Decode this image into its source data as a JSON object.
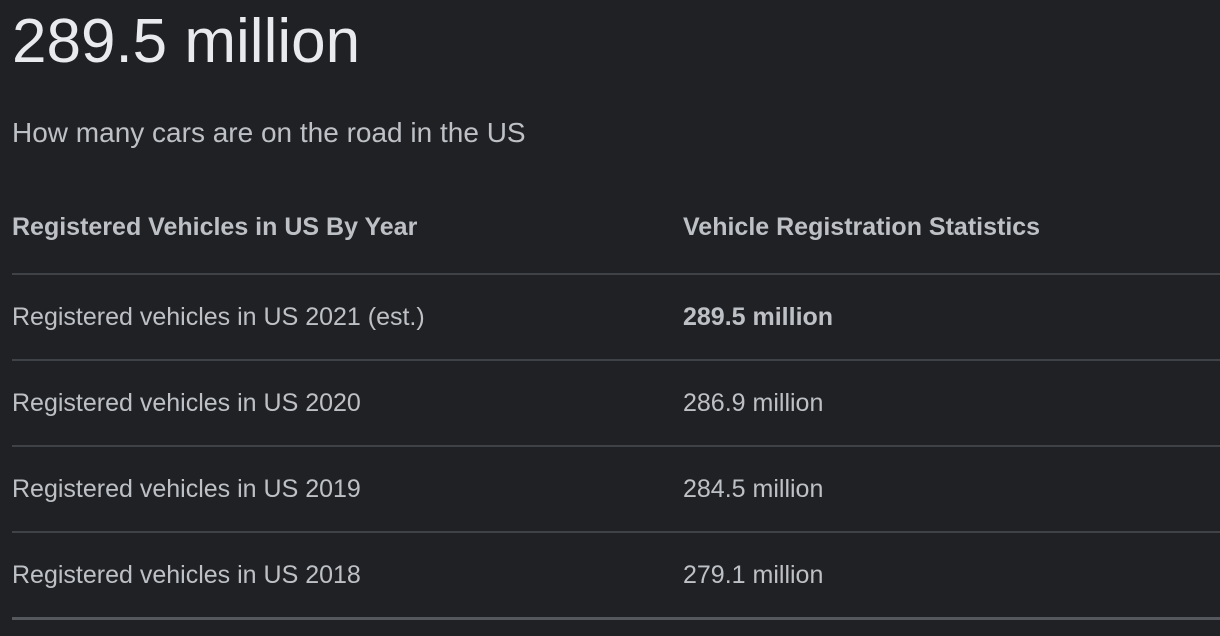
{
  "answer": {
    "value": "289.5 million",
    "question": "How many cars are on the road in the US"
  },
  "table": {
    "headers": [
      "Registered Vehicles in US By Year",
      "Vehicle Registration Statistics"
    ],
    "rows": [
      {
        "label": "Registered vehicles in US 2021 (est.)",
        "value": "289.5 million",
        "bold": true
      },
      {
        "label": "Registered vehicles in US 2020",
        "value": "286.9 million",
        "bold": false
      },
      {
        "label": "Registered vehicles in US 2019",
        "value": "284.5 million",
        "bold": false
      },
      {
        "label": "Registered vehicles in US 2018",
        "value": "279.1 million",
        "bold": false
      }
    ]
  },
  "colors": {
    "background": "#202124",
    "primary_text": "#e8eaed",
    "secondary_text": "#bdc1c6",
    "divider": "#3f4247",
    "bottom_divider": "#55585d"
  }
}
